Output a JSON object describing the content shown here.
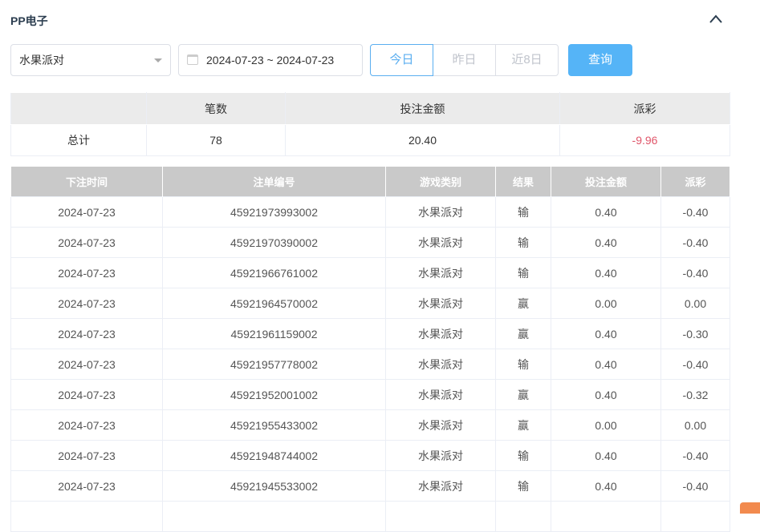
{
  "title": "PP电子",
  "filters": {
    "game": "水果派对",
    "date_range": "2024-07-23 ~ 2024-07-23",
    "quick": [
      "今日",
      "昨日",
      "近8日"
    ],
    "query": "查询"
  },
  "summary": {
    "headers": [
      "",
      "笔数",
      "投注金额",
      "派彩"
    ],
    "row": [
      "总计",
      "78",
      "20.40",
      "-9.96"
    ]
  },
  "table": {
    "headers": [
      "下注时间",
      "注单编号",
      "游戏类别",
      "结果",
      "投注金额",
      "派彩"
    ],
    "rows": [
      [
        "2024-07-23",
        "45921973993002",
        "水果派对",
        "输",
        "0.40",
        "-0.40"
      ],
      [
        "2024-07-23",
        "45921970390002",
        "水果派对",
        "输",
        "0.40",
        "-0.40"
      ],
      [
        "2024-07-23",
        "45921966761002",
        "水果派对",
        "输",
        "0.40",
        "-0.40"
      ],
      [
        "2024-07-23",
        "45921964570002",
        "水果派对",
        "赢",
        "0.00",
        "0.00"
      ],
      [
        "2024-07-23",
        "45921961159002",
        "水果派对",
        "赢",
        "0.40",
        "-0.30"
      ],
      [
        "2024-07-23",
        "45921957778002",
        "水果派对",
        "输",
        "0.40",
        "-0.40"
      ],
      [
        "2024-07-23",
        "45921952001002",
        "水果派对",
        "赢",
        "0.40",
        "-0.32"
      ],
      [
        "2024-07-23",
        "45921955433002",
        "水果派对",
        "赢",
        "0.00",
        "0.00"
      ],
      [
        "2024-07-23",
        "45921948744002",
        "水果派对",
        "输",
        "0.40",
        "-0.40"
      ],
      [
        "2024-07-23",
        "45921945533002",
        "水果派对",
        "输",
        "0.40",
        "-0.40"
      ]
    ]
  },
  "colors": {
    "accent": "#55b4f7",
    "negative": "#e0566a"
  }
}
